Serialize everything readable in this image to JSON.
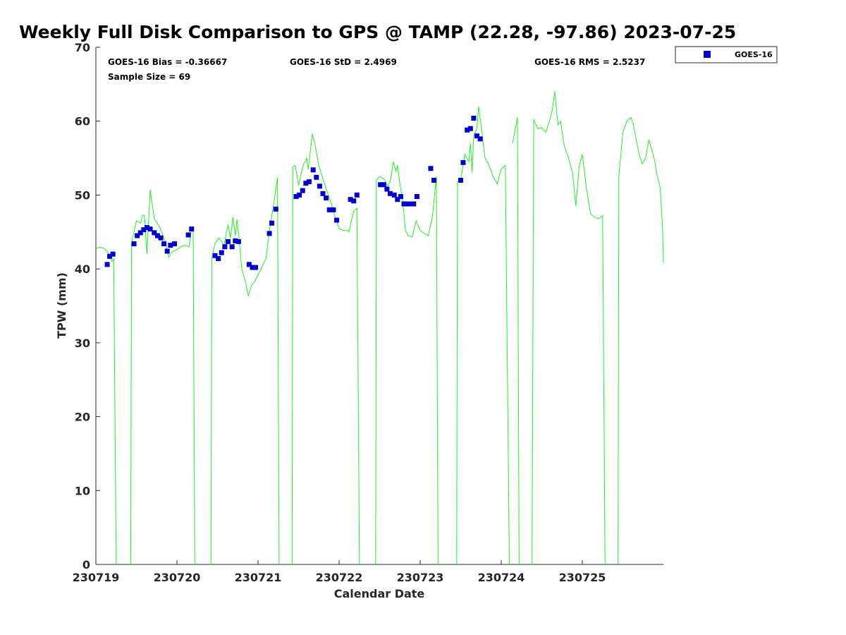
{
  "chart_data": {
    "type": "scatter",
    "title": "Weekly Full Disk Comparison to GPS @ TAMP (22.28, -97.86) 2023-07-25",
    "xlabel": "Calendar Date",
    "ylabel": "TPW (mm)",
    "xlim": [
      0,
      7
    ],
    "ylim": [
      0,
      70
    ],
    "x_ticks": [
      {
        "pos": 0,
        "label": "230719"
      },
      {
        "pos": 1,
        "label": "230720"
      },
      {
        "pos": 2,
        "label": "230721"
      },
      {
        "pos": 3,
        "label": "230722"
      },
      {
        "pos": 4,
        "label": "230723"
      },
      {
        "pos": 5,
        "label": "230724"
      },
      {
        "pos": 6,
        "label": "230725"
      }
    ],
    "y_ticks": [
      0,
      10,
      20,
      30,
      40,
      50,
      60,
      70
    ],
    "grid": false,
    "legend": {
      "placement": "outside-top-right",
      "entries": [
        "GOES-16"
      ]
    },
    "stats": {
      "bias": "GOES-16 Bias = -0.36667",
      "std": "GOES-16 StD = 2.4969",
      "rms": "GOES-16 RMS = 2.5237",
      "sample": "Sample Size = 69"
    },
    "series": [
      {
        "name": "GOES-16",
        "kind": "scatter",
        "color": "#0000cc",
        "marker": "square",
        "points": [
          [
            0.14,
            40.6
          ],
          [
            0.17,
            41.7
          ],
          [
            0.21,
            42.0
          ],
          [
            0.47,
            43.4
          ],
          [
            0.51,
            44.5
          ],
          [
            0.55,
            44.9
          ],
          [
            0.59,
            45.3
          ],
          [
            0.63,
            45.6
          ],
          [
            0.67,
            45.4
          ],
          [
            0.72,
            44.9
          ],
          [
            0.76,
            44.5
          ],
          [
            0.8,
            44.2
          ],
          [
            0.84,
            43.4
          ],
          [
            0.88,
            42.4
          ],
          [
            0.92,
            43.2
          ],
          [
            0.97,
            43.4
          ],
          [
            1.14,
            44.6
          ],
          [
            1.18,
            45.4
          ],
          [
            1.47,
            41.8
          ],
          [
            1.51,
            41.4
          ],
          [
            1.55,
            42.2
          ],
          [
            1.59,
            43.0
          ],
          [
            1.63,
            43.7
          ],
          [
            1.68,
            43.0
          ],
          [
            1.72,
            43.8
          ],
          [
            1.76,
            43.7
          ],
          [
            1.89,
            40.6
          ],
          [
            1.93,
            40.2
          ],
          [
            1.97,
            40.2
          ],
          [
            2.14,
            44.8
          ],
          [
            2.17,
            46.2
          ],
          [
            2.22,
            48.1
          ],
          [
            2.47,
            49.8
          ],
          [
            2.51,
            50.0
          ],
          [
            2.55,
            50.6
          ],
          [
            2.59,
            51.6
          ],
          [
            2.63,
            51.8
          ],
          [
            2.68,
            53.4
          ],
          [
            2.72,
            52.4
          ],
          [
            2.76,
            51.2
          ],
          [
            2.8,
            50.2
          ],
          [
            2.84,
            49.6
          ],
          [
            2.88,
            48.0
          ],
          [
            2.93,
            48.0
          ],
          [
            2.97,
            46.6
          ],
          [
            3.14,
            49.4
          ],
          [
            3.18,
            49.2
          ],
          [
            3.22,
            50.0
          ],
          [
            3.51,
            51.4
          ],
          [
            3.55,
            51.4
          ],
          [
            3.59,
            50.8
          ],
          [
            3.63,
            50.2
          ],
          [
            3.68,
            50.0
          ],
          [
            3.72,
            49.4
          ],
          [
            3.76,
            49.8
          ],
          [
            3.8,
            48.8
          ],
          [
            3.84,
            48.8
          ],
          [
            3.88,
            48.8
          ],
          [
            3.92,
            48.8
          ],
          [
            3.96,
            49.8
          ],
          [
            4.13,
            53.6
          ],
          [
            4.17,
            52.0
          ],
          [
            4.5,
            52.0
          ],
          [
            4.53,
            54.4
          ],
          [
            4.58,
            58.8
          ],
          [
            4.62,
            59.0
          ],
          [
            4.66,
            60.4
          ],
          [
            4.7,
            58.0
          ],
          [
            4.74,
            57.6
          ]
        ]
      },
      {
        "name": "GPS",
        "kind": "line",
        "color": "#22ee22",
        "segments": [
          [
            [
              0.0,
              42.8
            ],
            [
              0.05,
              42.9
            ],
            [
              0.1,
              42.8
            ],
            [
              0.15,
              42.2
            ],
            [
              0.2,
              41.0
            ],
            [
              0.22,
              41.4
            ],
            [
              0.25,
              0
            ]
          ],
          [
            [
              0.43,
              0
            ],
            [
              0.44,
              43.5
            ],
            [
              0.5,
              46.5
            ],
            [
              0.55,
              46.2
            ],
            [
              0.58,
              47.3
            ],
            [
              0.6,
              47.2
            ],
            [
              0.63,
              42.0
            ],
            [
              0.67,
              50.7
            ],
            [
              0.72,
              46.8
            ],
            [
              0.78,
              45.8
            ],
            [
              0.82,
              44.8
            ],
            [
              0.86,
              43.5
            ],
            [
              0.9,
              41.6
            ],
            [
              0.94,
              42.3
            ],
            [
              1.0,
              42.6
            ],
            [
              1.05,
              43.0
            ],
            [
              1.1,
              43.2
            ],
            [
              1.15,
              43.0
            ],
            [
              1.18,
              45.6
            ],
            [
              1.2,
              45.0
            ],
            [
              1.22,
              0
            ]
          ],
          [
            [
              1.42,
              0
            ],
            [
              1.43,
              41.5
            ],
            [
              1.47,
              43.5
            ],
            [
              1.52,
              44.2
            ],
            [
              1.58,
              43.2
            ],
            [
              1.63,
              46.0
            ],
            [
              1.66,
              44.2
            ],
            [
              1.69,
              47.0
            ],
            [
              1.72,
              44.5
            ],
            [
              1.74,
              46.7
            ],
            [
              1.76,
              44.8
            ],
            [
              1.8,
              40.0
            ],
            [
              1.85,
              38.0
            ],
            [
              1.88,
              36.3
            ],
            [
              1.92,
              37.8
            ],
            [
              1.96,
              38.3
            ],
            [
              2.0,
              39.2
            ],
            [
              2.05,
              40.3
            ],
            [
              2.1,
              41.5
            ],
            [
              2.14,
              45.2
            ],
            [
              2.2,
              49.3
            ],
            [
              2.24,
              52.4
            ],
            [
              2.26,
              0
            ]
          ],
          [
            [
              2.42,
              0
            ],
            [
              2.43,
              53.8
            ],
            [
              2.46,
              54.0
            ],
            [
              2.5,
              51.3
            ],
            [
              2.55,
              53.8
            ],
            [
              2.6,
              55.0
            ],
            [
              2.62,
              53.5
            ],
            [
              2.67,
              58.3
            ],
            [
              2.7,
              57.0
            ],
            [
              2.75,
              54.0
            ],
            [
              2.8,
              52.2
            ],
            [
              2.85,
              50.5
            ],
            [
              2.9,
              49.0
            ],
            [
              2.95,
              47.0
            ],
            [
              3.0,
              45.5
            ],
            [
              3.05,
              45.2
            ],
            [
              3.1,
              45.2
            ],
            [
              3.12,
              45.0
            ],
            [
              3.18,
              47.8
            ],
            [
              3.22,
              48.2
            ],
            [
              3.25,
              0
            ]
          ],
          [
            [
              3.45,
              0
            ],
            [
              3.46,
              52.0
            ],
            [
              3.5,
              52.5
            ],
            [
              3.55,
              52.2
            ],
            [
              3.6,
              51.2
            ],
            [
              3.63,
              51.8
            ],
            [
              3.67,
              54.5
            ],
            [
              3.7,
              53.2
            ],
            [
              3.72,
              54.0
            ],
            [
              3.75,
              51.5
            ],
            [
              3.78,
              49.5
            ],
            [
              3.82,
              45.2
            ],
            [
              3.85,
              44.5
            ],
            [
              3.9,
              44.3
            ],
            [
              3.95,
              46.5
            ],
            [
              4.0,
              45.2
            ],
            [
              4.05,
              44.8
            ],
            [
              4.1,
              44.5
            ],
            [
              4.15,
              47.0
            ],
            [
              4.2,
              52.5
            ],
            [
              4.22,
              0
            ]
          ],
          [
            [
              4.45,
              0
            ],
            [
              4.46,
              51.8
            ],
            [
              4.5,
              52.0
            ],
            [
              4.55,
              55.5
            ],
            [
              4.6,
              54.5
            ],
            [
              4.62,
              57.0
            ],
            [
              4.64,
              53.0
            ],
            [
              4.66,
              58.0
            ],
            [
              4.7,
              59.0
            ],
            [
              4.72,
              62.0
            ],
            [
              4.75,
              59.5
            ],
            [
              4.8,
              55.0
            ],
            [
              4.85,
              54.0
            ],
            [
              4.9,
              52.5
            ],
            [
              4.95,
              51.5
            ],
            [
              5.0,
              53.5
            ],
            [
              5.05,
              54.0
            ],
            [
              5.1,
              0
            ]
          ],
          [
            [
              5.14,
              57.0
            ],
            [
              5.2,
              60.5
            ],
            [
              5.22,
              0
            ]
          ],
          [
            [
              5.38,
              0
            ],
            [
              5.4,
              60.2
            ],
            [
              5.45,
              59.0
            ],
            [
              5.5,
              59.1
            ],
            [
              5.55,
              58.5
            ],
            [
              5.6,
              60.2
            ],
            [
              5.63,
              61.5
            ],
            [
              5.66,
              64.0
            ],
            [
              5.7,
              59.5
            ],
            [
              5.73,
              60.0
            ],
            [
              5.78,
              56.5
            ],
            [
              5.83,
              55.0
            ],
            [
              5.88,
              53.0
            ],
            [
              5.92,
              48.5
            ],
            [
              5.96,
              53.8
            ],
            [
              6.0,
              55.5
            ],
            [
              6.05,
              51.0
            ],
            [
              6.1,
              47.5
            ],
            [
              6.15,
              47.0
            ],
            [
              6.2,
              46.8
            ],
            [
              6.25,
              47.2
            ],
            [
              6.28,
              0
            ]
          ],
          [
            [
              6.44,
              0
            ],
            [
              6.45,
              52.5
            ],
            [
              6.5,
              58.5
            ],
            [
              6.55,
              60.0
            ],
            [
              6.6,
              60.5
            ],
            [
              6.63,
              59.5
            ],
            [
              6.67,
              57.2
            ],
            [
              6.7,
              55.5
            ],
            [
              6.74,
              54.2
            ],
            [
              6.78,
              55.0
            ],
            [
              6.82,
              57.5
            ],
            [
              6.86,
              56.0
            ],
            [
              6.89,
              54.8
            ],
            [
              6.92,
              52.8
            ],
            [
              6.96,
              51.0
            ],
            [
              6.99,
              45.5
            ],
            [
              7.0,
              40.8
            ]
          ]
        ]
      }
    ]
  }
}
